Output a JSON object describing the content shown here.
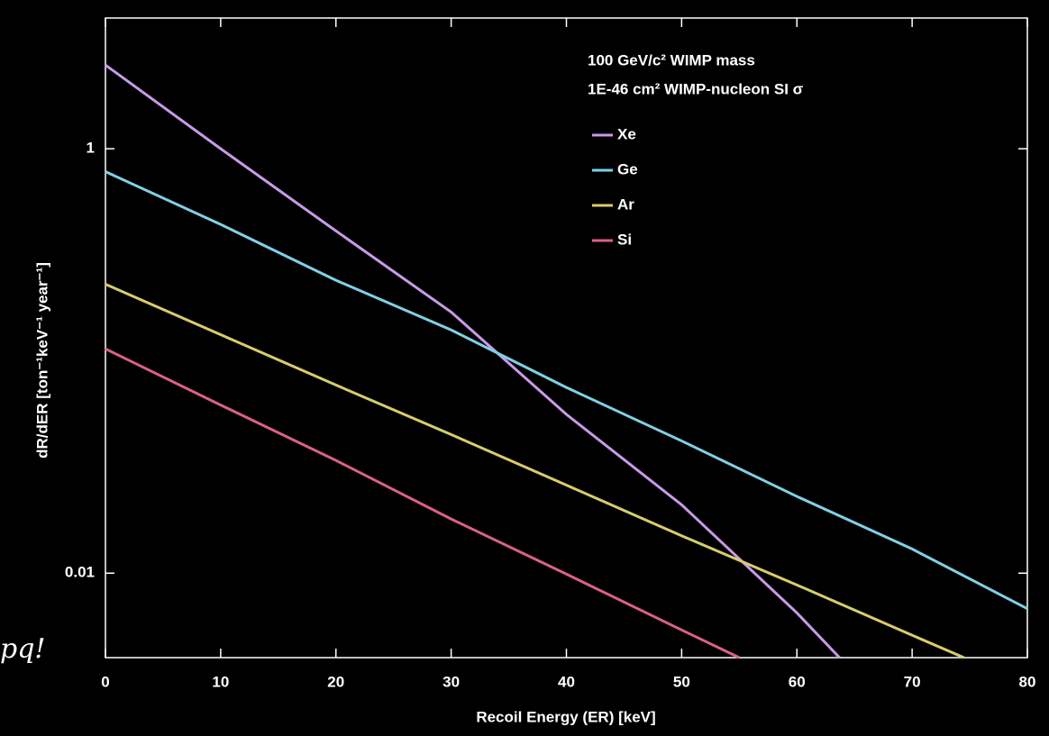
{
  "fragment_text": "pq!",
  "chart_data": {
    "type": "line",
    "annotations": [
      "100 GeV/c² WIMP mass",
      "1E-46 cm² WIMP-nucleon SI σ"
    ],
    "xlabel": "Recoil Energy (ER) [keV]",
    "ylabel": "dR/dER [ton⁻¹keV⁻¹ year⁻¹]",
    "xlim": [
      0,
      80
    ],
    "xticks": [
      0,
      10,
      20,
      30,
      40,
      50,
      60,
      70,
      80
    ],
    "ylim": [
      0.004,
      4.13
    ],
    "yticks": [
      0.01,
      1
    ],
    "log_y": true,
    "legend": "upper right",
    "series": [
      {
        "name": "Xe",
        "color": "#c99ae8",
        "x": [
          0,
          10,
          20,
          30,
          40,
          50,
          60,
          63.7
        ],
        "values": [
          2.48,
          1.0,
          0.41,
          0.17,
          0.056,
          0.021,
          0.0065,
          0.004
        ]
      },
      {
        "name": "Ge",
        "color": "#80d0e6",
        "x": [
          0,
          10,
          20,
          30,
          40,
          50,
          60,
          70,
          80
        ],
        "values": [
          0.78,
          0.44,
          0.24,
          0.14,
          0.075,
          0.042,
          0.023,
          0.013,
          0.0068
        ]
      },
      {
        "name": "Ar",
        "color": "#d8cd6a",
        "x": [
          0,
          10,
          20,
          30,
          40,
          50,
          60,
          70,
          74.5
        ],
        "values": [
          0.23,
          0.133,
          0.077,
          0.045,
          0.026,
          0.015,
          0.0088,
          0.0051,
          0.004
        ]
      },
      {
        "name": "Si",
        "color": "#db5f8f",
        "x": [
          0,
          10,
          20,
          30,
          40,
          50,
          55
        ],
        "values": [
          0.114,
          0.062,
          0.034,
          0.018,
          0.0099,
          0.0054,
          0.004
        ]
      }
    ]
  }
}
